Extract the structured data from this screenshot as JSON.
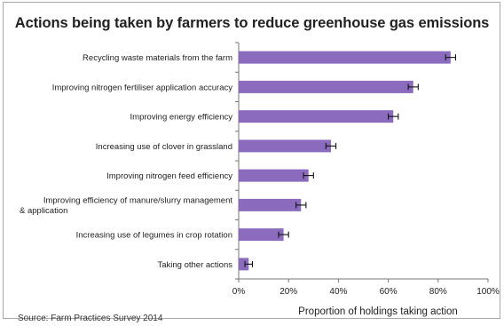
{
  "chart_data": {
    "type": "bar",
    "orientation": "horizontal",
    "title": "Actions being taken by farmers to reduce greenhouse gas emissions",
    "xlabel": "Proportion of holdings taking action",
    "ylabel": "",
    "xlim": [
      0,
      100
    ],
    "tick_labels": [
      "0%",
      "20%",
      "40%",
      "60%",
      "80%",
      "100%"
    ],
    "tick_values": [
      0,
      20,
      40,
      60,
      80,
      100
    ],
    "grid": false,
    "error_bars": true,
    "bar_color": "#8a6bbd",
    "categories": [
      [
        "Recycling waste materials from the farm"
      ],
      [
        "Improving nitrogen fertiliser application accuracy"
      ],
      [
        "Improving energy efficiency"
      ],
      [
        "Increasing use of clover in grassland"
      ],
      [
        "Improving nitrogen feed efficiency"
      ],
      [
        "Improving efficiency of manure/slurry management",
        "& application"
      ],
      [
        "Increasing use of legumes in crop rotation"
      ],
      [
        "Taking other actions"
      ]
    ],
    "values": [
      85,
      70,
      62,
      37,
      28,
      25,
      18,
      4
    ],
    "errors": [
      2,
      2,
      2,
      2,
      2,
      2,
      2,
      1.5
    ]
  },
  "source": "Source: Farm Practices Survey 2014"
}
